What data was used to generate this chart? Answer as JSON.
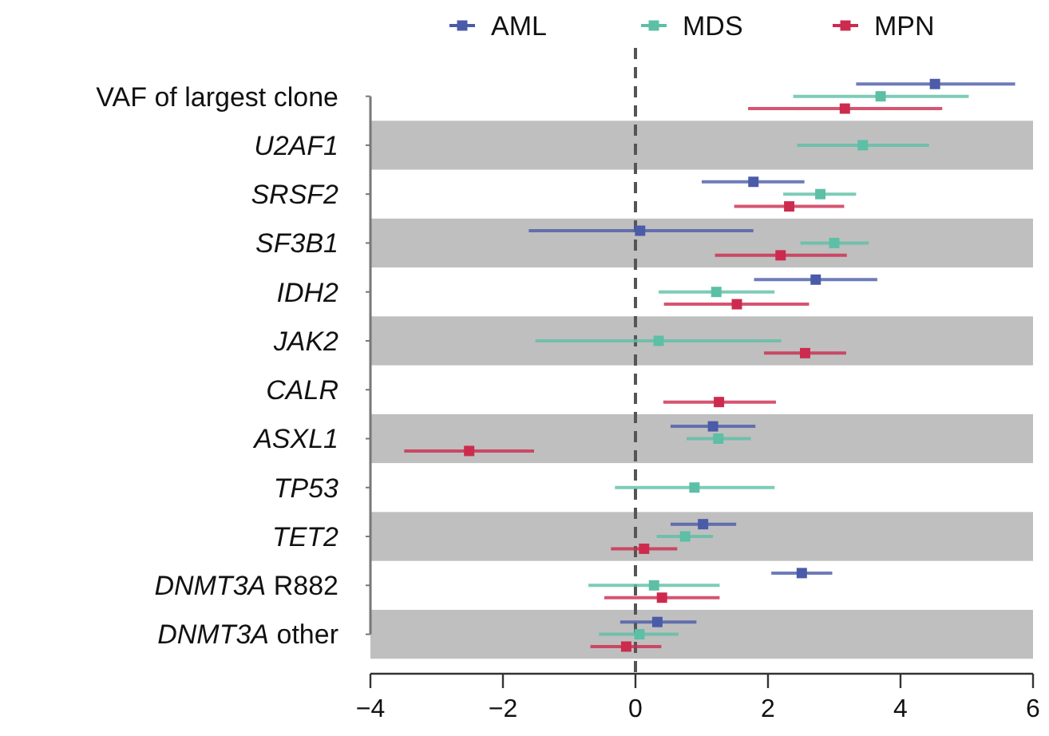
{
  "chart_data": {
    "type": "scatter",
    "orientation": "horizontal",
    "categories": [
      "VAF of largest clone",
      "U2AF1",
      "SRSF2",
      "SF3B1",
      "IDH2",
      "JAK2",
      "CALR",
      "ASXL1",
      "TP53",
      "TET2",
      "DNMT3A R882",
      "DNMT3A other"
    ],
    "series": [
      {
        "name": "AML",
        "color": "#4a5ba8",
        "values": [
          4.52,
          null,
          1.78,
          0.07,
          2.72,
          null,
          null,
          1.17,
          null,
          1.02,
          2.51,
          0.33
        ],
        "errors": [
          [
            3.33,
            5.73
          ],
          null,
          [
            1.0,
            2.55
          ],
          [
            -1.61,
            1.78
          ],
          [
            1.79,
            3.65
          ],
          null,
          null,
          [
            0.53,
            1.81
          ],
          null,
          [
            0.53,
            1.52
          ],
          [
            2.05,
            2.97
          ],
          [
            -0.23,
            0.92
          ]
        ]
      },
      {
        "name": "MDS",
        "color": "#5cbfa6",
        "values": [
          3.7,
          3.43,
          2.79,
          3.0,
          1.22,
          0.35,
          null,
          1.25,
          0.89,
          0.75,
          0.28,
          0.06
        ],
        "errors": [
          [
            2.38,
            5.03
          ],
          [
            2.44,
            4.43
          ],
          [
            2.23,
            3.33
          ],
          [
            2.49,
            3.52
          ],
          [
            0.35,
            2.1
          ],
          [
            -1.51,
            2.2
          ],
          null,
          [
            0.77,
            1.74
          ],
          [
            -0.31,
            2.1
          ],
          [
            0.32,
            1.17
          ],
          [
            -0.71,
            1.27
          ],
          [
            -0.55,
            0.65
          ]
        ]
      },
      {
        "name": "MPN",
        "color": "#cc2b4e",
        "values": [
          3.16,
          null,
          2.32,
          2.19,
          1.53,
          2.56,
          1.26,
          -2.51,
          null,
          0.13,
          0.4,
          -0.14
        ],
        "errors": [
          [
            1.7,
            4.63
          ],
          null,
          [
            1.49,
            3.15
          ],
          [
            1.2,
            3.19
          ],
          [
            0.43,
            2.62
          ],
          [
            1.94,
            3.18
          ],
          [
            0.42,
            2.12
          ],
          [
            -3.49,
            -1.53
          ],
          null,
          [
            -0.37,
            0.63
          ],
          [
            -0.47,
            1.27
          ],
          [
            -0.68,
            0.39
          ]
        ]
      }
    ],
    "xlim": [
      -4,
      6
    ],
    "xticks": [
      -4,
      -2,
      0,
      2,
      4,
      6
    ],
    "ref_lines": [
      {
        "axis": "x",
        "value": 0,
        "line_style": "dashed",
        "color": "#555555"
      }
    ],
    "marker": "square",
    "legend": "top"
  }
}
